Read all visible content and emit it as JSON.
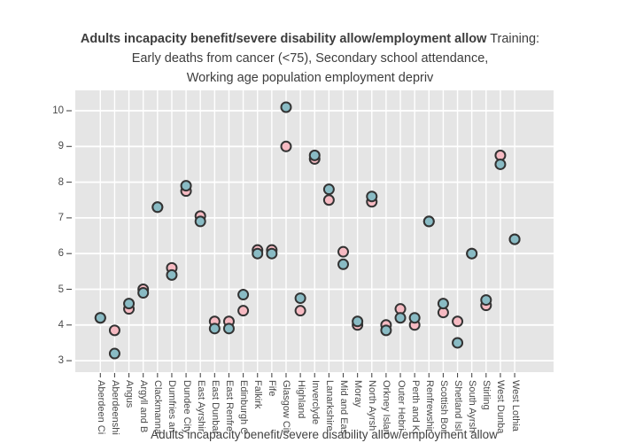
{
  "title": {
    "bold": "Adults incapacity benefit/severe disability allow/employment allow",
    "normal": " Training:",
    "line2": "Early deaths from cancer (<75), Secondary school attendance,",
    "line3": "Working age population employment depriv"
  },
  "x_axis": {
    "title": "Adults incapacity benefit/severe disability allow/employment allow"
  },
  "y_axis": {
    "ticks": [
      10,
      9,
      8,
      7,
      6,
      5,
      4,
      3
    ]
  },
  "colors": {
    "plot_background": "#e5e5e5",
    "gridline": "#ffffff",
    "tick_text": "#4a4a4a",
    "title_text": "#3d3d3d",
    "marker_outline": "#333333",
    "series_teal": "#89bbc4",
    "series_pink": "#f6bac2"
  },
  "chart_data": {
    "type": "scatter",
    "title": "Adults incapacity benefit/severe disability allow/employment allow Training: Early deaths from cancer (<75), Secondary school attendance, Working age population employment depriv",
    "xlabel": "Adults incapacity benefit/severe disability allow/employment allow",
    "ylabel": "",
    "ylim": [
      2.6,
      10.6
    ],
    "grid": true,
    "legend": "none",
    "background": "#e5e5e5",
    "marker": {
      "size": 13,
      "outline": "#333333"
    },
    "categories": [
      "Aberdeen Ci",
      "Aberdeenshi",
      "Angus",
      "Argyll and B",
      "Clackmanna",
      "Dumfries an",
      "Dundee City",
      "East Ayrshir",
      "East Dunbar",
      "East Renfre",
      "Edinburgh C",
      "Falkirk",
      "Fife",
      "Glasgow Cit",
      "Highland",
      "Inverclyde",
      "Lanarkshire",
      "Mid and Eas",
      "Moray",
      "North Ayrsh",
      "Orkney Islan",
      "Outer Hebri",
      "Perth and Ki",
      "Renfrewshir",
      "Scottish Bor",
      "Shetland Isl",
      "South Ayrsh",
      "Stirling",
      "West Dunba",
      "West Lothia"
    ],
    "series": [
      {
        "name": "pink",
        "color": "#f6bac2",
        "values": [
          4.2,
          3.85,
          4.45,
          5.0,
          7.3,
          5.6,
          7.75,
          7.05,
          4.1,
          4.1,
          4.4,
          6.1,
          6.1,
          9.0,
          4.4,
          8.65,
          7.5,
          6.05,
          4.0,
          7.45,
          4.0,
          4.45,
          4.0,
          6.9,
          4.35,
          4.1,
          6.0,
          4.55,
          8.75,
          6.4
        ]
      },
      {
        "name": "teal",
        "color": "#89bbc4",
        "values": [
          4.2,
          3.2,
          4.6,
          4.9,
          7.3,
          5.4,
          7.9,
          6.9,
          3.9,
          3.9,
          4.85,
          6.0,
          6.0,
          10.1,
          4.75,
          8.75,
          7.8,
          5.7,
          4.1,
          7.6,
          3.85,
          4.2,
          4.2,
          6.9,
          4.6,
          3.5,
          6.0,
          4.7,
          8.5,
          6.4
        ]
      }
    ]
  }
}
